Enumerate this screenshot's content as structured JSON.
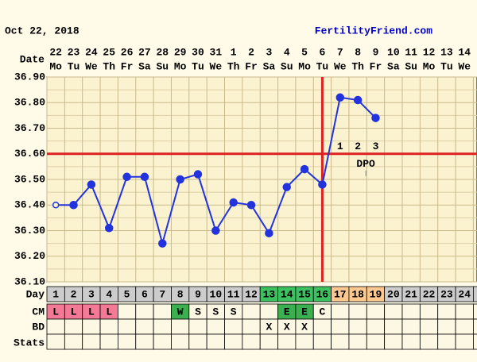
{
  "header": {
    "date": "Oct 22, 2018",
    "site": "FertilityFriend.com"
  },
  "row_labels": {
    "date": "Date",
    "day": "Day",
    "cm": "CM",
    "bd": "BD",
    "stats": "Stats"
  },
  "chart_data": {
    "type": "line",
    "categories": [
      "22",
      "23",
      "24",
      "25",
      "26",
      "27",
      "28",
      "29",
      "30",
      "31",
      "1",
      "2",
      "3",
      "4",
      "5",
      "6",
      "7",
      "8",
      "9",
      "10",
      "11",
      "12",
      "13",
      "14"
    ],
    "weekdays": [
      "Mo",
      "Tu",
      "We",
      "Th",
      "Fr",
      "Sa",
      "Su",
      "Mo",
      "Tu",
      "We",
      "Th",
      "Fr",
      "Sa",
      "Su",
      "Mo",
      "Tu",
      "We",
      "Th",
      "Fr",
      "Sa",
      "Su",
      "Mo",
      "Tu",
      "We"
    ],
    "series": [
      {
        "color": "#2233dd",
        "open_points": [
          0
        ],
        "values": [
          36.4,
          36.4,
          36.48,
          36.31,
          36.51,
          36.51,
          36.25,
          36.5,
          36.52,
          36.3,
          36.41,
          36.4,
          36.29,
          36.47,
          36.54,
          36.48,
          36.82,
          36.81,
          36.74,
          null,
          null,
          null,
          null,
          null
        ]
      }
    ],
    "ylim": [
      36.1,
      36.9
    ],
    "yticks": [
      {
        "value": 36.9,
        "label": "36.90"
      },
      {
        "value": 36.8,
        "label": "36.80"
      },
      {
        "value": 36.7,
        "label": "36.70"
      },
      {
        "value": 36.6,
        "label": "36.60"
      },
      {
        "value": 36.5,
        "label": "36.50"
      },
      {
        "value": 36.4,
        "label": "36.40"
      },
      {
        "value": 36.3,
        "label": "36.30"
      },
      {
        "value": 36.2,
        "label": "36.20"
      },
      {
        "value": 36.1,
        "label": "36.10"
      }
    ],
    "grid": true,
    "coverline": 36.6,
    "ovulation_day": 16,
    "line_color": "#dd2222",
    "dpo": {
      "label": "DPO",
      "values": [
        "1",
        "2",
        "3"
      ]
    }
  },
  "table": {
    "days": [
      "1",
      "2",
      "3",
      "4",
      "5",
      "6",
      "7",
      "8",
      "9",
      "10",
      "11",
      "12",
      "13",
      "14",
      "15",
      "16",
      "17",
      "18",
      "19",
      "20",
      "21",
      "22",
      "23",
      "24"
    ],
    "phases": [
      {
        "days": [
          13,
          16
        ],
        "color": "#3cc060"
      },
      {
        "days": [
          17,
          19
        ],
        "color": "#fcc890"
      }
    ],
    "day_color": "#cccccc",
    "cm": [
      "L",
      "L",
      "L",
      "L",
      null,
      null,
      null,
      "W",
      "S",
      "S",
      "S",
      null,
      null,
      "E",
      "E",
      "C",
      null,
      null,
      null,
      null,
      null,
      null,
      null,
      null
    ],
    "cm_colors": {
      "L": "#f27a96",
      "W": "#3cb050",
      "E": "#3cb050"
    },
    "bd": [
      null,
      null,
      null,
      null,
      null,
      null,
      null,
      null,
      null,
      null,
      null,
      null,
      "X",
      "X",
      "X",
      null,
      null,
      null,
      null,
      null,
      null,
      null,
      null,
      null
    ]
  }
}
